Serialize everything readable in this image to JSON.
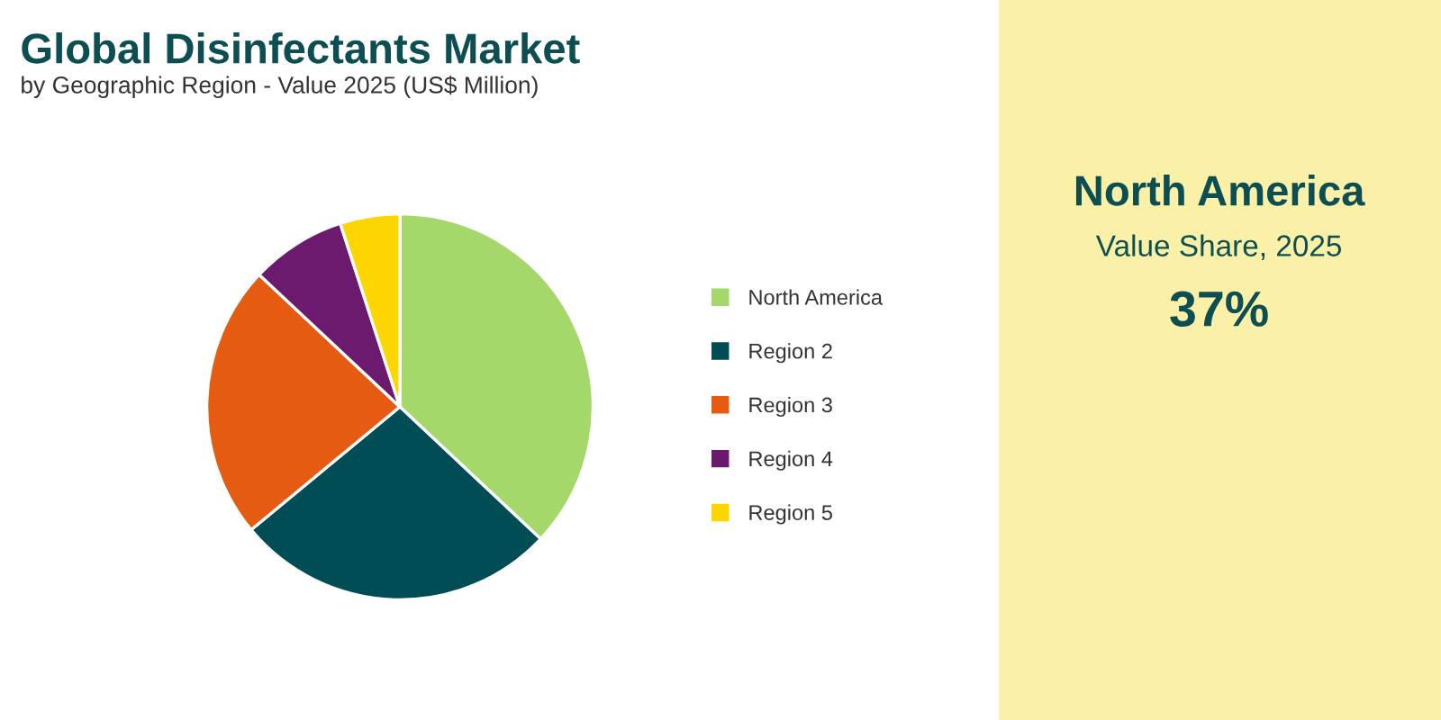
{
  "chart_data": {
    "type": "pie",
    "title": "Global Disinfectants Market",
    "subtitle": "by Geographic Region - Value 2025 (US$ Million)",
    "categories": [
      "North America",
      "Region 2",
      "Region 3",
      "Region 4",
      "Region 5"
    ],
    "values": [
      37,
      27,
      23,
      8,
      5
    ],
    "colors": [
      "#a5d86a",
      "#004d55",
      "#e65b12",
      "#6b1a6e",
      "#fdd600"
    ],
    "legend": "right",
    "annotations": [
      "North America",
      "Value Share, 2025",
      "37%"
    ]
  }
}
